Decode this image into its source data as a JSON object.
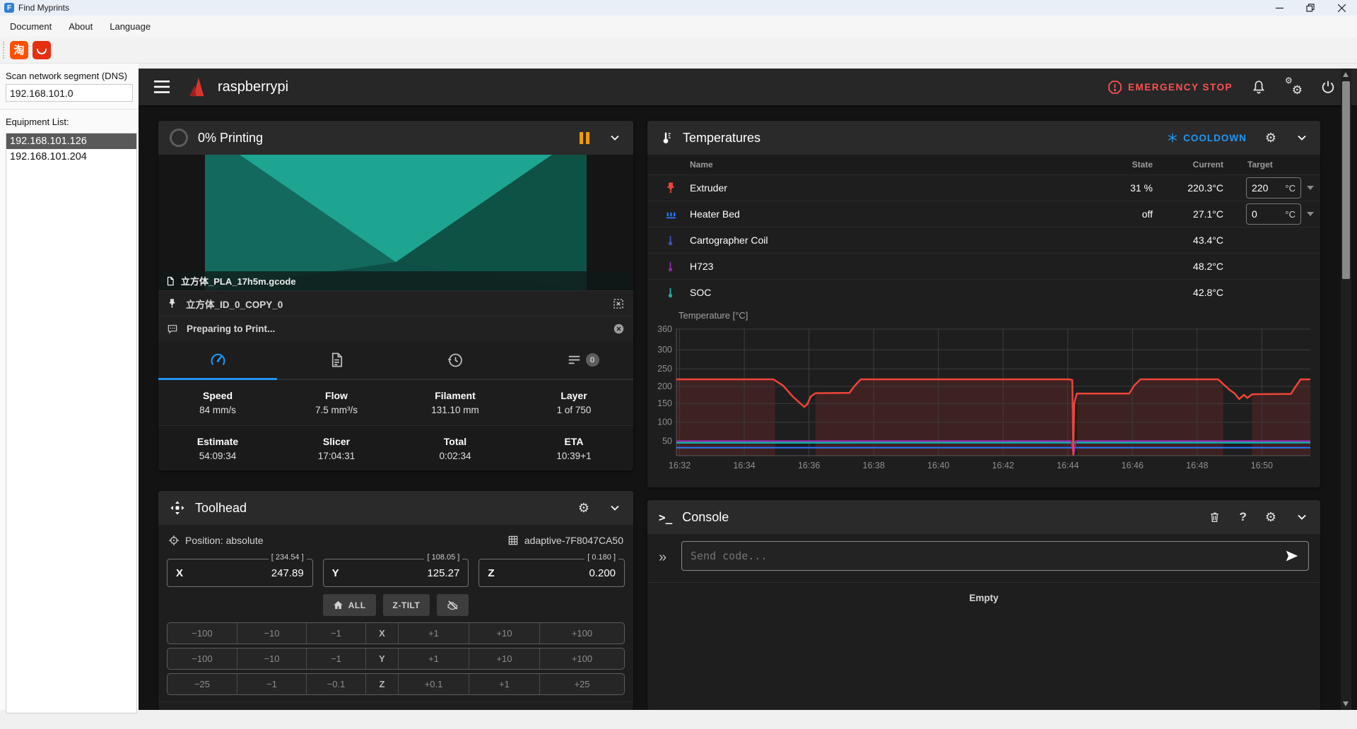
{
  "window": {
    "title": "Find Myprints",
    "icon_letter": "F",
    "menu": [
      "Document",
      "About",
      "Language"
    ]
  },
  "toolbar": {
    "taobao_glyph": "淘"
  },
  "sidebar": {
    "scan_label": "Scan network segment (DNS)",
    "scan_value": "192.168.101.0",
    "list_label": "Equipment List:",
    "devices": [
      {
        "ip": "192.168.101.126",
        "selected": true
      },
      {
        "ip": "192.168.101.204",
        "selected": false
      }
    ]
  },
  "navbar": {
    "hostname": "raspberrypi",
    "emergency_stop": "EMERGENCY STOP"
  },
  "print_panel": {
    "progress_text": "0% Printing",
    "filename": "立方体_PLA_17h5m.gcode",
    "object_name": "立方体_ID_0_COPY_0",
    "message": "Preparing to Print...",
    "queue_badge": "0",
    "stats_row1": [
      {
        "label": "Speed",
        "value": "84 mm/s"
      },
      {
        "label": "Flow",
        "value": "7.5 mm³/s"
      },
      {
        "label": "Filament",
        "value": "131.10 mm"
      },
      {
        "label": "Layer",
        "value": "1 of 750"
      }
    ],
    "stats_row2": [
      {
        "label": "Estimate",
        "value": "54:09:34"
      },
      {
        "label": "Slicer",
        "value": "17:04:31"
      },
      {
        "label": "Total",
        "value": "0:02:34"
      },
      {
        "label": "ETA",
        "value": "10:39+1"
      }
    ]
  },
  "toolhead": {
    "title": "Toolhead",
    "position": "Position: absolute",
    "mesh_profile": "adaptive-7F8047CA50",
    "axes": [
      {
        "axis": "X",
        "value": "247.89",
        "limit": "[ 234.54 ]"
      },
      {
        "axis": "Y",
        "value": "125.27",
        "limit": "[ 108.05 ]"
      },
      {
        "axis": "Z",
        "value": "0.200",
        "limit": "[ 0.180 ]"
      }
    ],
    "home_all": "ALL",
    "z_tilt": "Z-TILT",
    "jog_rows": [
      {
        "cells": [
          "−100",
          "−10",
          "−1",
          "X",
          "+1",
          "+10",
          "+100"
        ]
      },
      {
        "cells": [
          "−100",
          "−10",
          "−1",
          "Y",
          "+1",
          "+10",
          "+100"
        ]
      },
      {
        "cells": [
          "−25",
          "−1",
          "−0.1",
          "Z",
          "+0.1",
          "+1",
          "+25"
        ]
      }
    ]
  },
  "temperatures": {
    "title": "Temperatures",
    "cooldown_label": "COOLDOWN",
    "columns": [
      "Name",
      "State",
      "Current",
      "Target"
    ],
    "rows": [
      {
        "name": "Extruder",
        "color": "#e5483d",
        "state": "31 %",
        "current": "220.3°C",
        "target": "220",
        "unit": "°C"
      },
      {
        "name": "Heater Bed",
        "color": "#2979ff",
        "state": "off",
        "current": "27.1°C",
        "target": "0",
        "unit": "°C"
      },
      {
        "name": "Cartographer Coil",
        "color": "#3f51b5",
        "state": "",
        "current": "43.4°C"
      },
      {
        "name": "H723",
        "color": "#8e24aa",
        "state": "",
        "current": "48.2°C"
      },
      {
        "name": "SOC",
        "color": "#26a69a",
        "state": "",
        "current": "42.8°C"
      }
    ]
  },
  "console": {
    "title": "Console",
    "icon_glyph": ">_",
    "prompt_glyph": "»",
    "placeholder": "Send code...",
    "empty_text": "Empty"
  },
  "chart_data": {
    "type": "line",
    "title": "Temperature [°C]",
    "x_range": [
      31.9,
      51.5
    ],
    "x_ticks": [
      {
        "t": 32,
        "label": "16:32"
      },
      {
        "t": 34,
        "label": "16:34"
      },
      {
        "t": 36,
        "label": "16:36"
      },
      {
        "t": 38,
        "label": "16:38"
      },
      {
        "t": 40,
        "label": "16:40"
      },
      {
        "t": 42,
        "label": "16:42"
      },
      {
        "t": 44,
        "label": "16:44"
      },
      {
        "t": 46,
        "label": "16:46"
      },
      {
        "t": 48,
        "label": "16:48"
      },
      {
        "t": 50,
        "label": "16:50"
      }
    ],
    "y_ticks": [
      50,
      100,
      150,
      200,
      250,
      300,
      360
    ],
    "ylim": [
      0,
      360
    ],
    "grid": true,
    "legend": "none",
    "series": [
      {
        "name": "Heater Bed",
        "color": "#2979ff",
        "width": 2,
        "points": [
          [
            31.9,
            27
          ],
          [
            51.5,
            27
          ]
        ]
      },
      {
        "name": "Cartographer Coil",
        "color": "#00acc1",
        "width": 2,
        "points": [
          [
            31.9,
            43.5
          ],
          [
            51.5,
            44
          ]
        ]
      },
      {
        "name": "SOC",
        "color": "#26a69a",
        "width": 2,
        "points": [
          [
            31.9,
            45.5
          ],
          [
            40,
            46
          ],
          [
            51.5,
            46.5
          ]
        ]
      },
      {
        "name": "H723",
        "color": "#9c27b0",
        "width": 2,
        "points": [
          [
            31.9,
            50
          ],
          [
            44.1,
            50
          ],
          [
            44.18,
            3
          ],
          [
            44.26,
            50
          ],
          [
            51.5,
            50
          ]
        ]
      },
      {
        "name": "Extruder",
        "color": "#ef4438",
        "width": 2.5,
        "fill": "rgba(229,57,53,0.16)",
        "fill_gaps": [
          [
            34.95,
            36.2
          ],
          [
            44.12,
            44.3
          ],
          [
            48.8,
            49.7
          ]
        ],
        "points": [
          [
            31.9,
            220
          ],
          [
            34.9,
            220
          ],
          [
            35.2,
            202
          ],
          [
            35.5,
            170
          ],
          [
            35.85,
            141
          ],
          [
            35.95,
            148
          ],
          [
            36.05,
            170
          ],
          [
            36.2,
            180
          ],
          [
            37.25,
            181
          ],
          [
            37.4,
            200
          ],
          [
            37.6,
            220
          ],
          [
            44.05,
            220
          ],
          [
            44.14,
            218
          ],
          [
            44.17,
            3
          ],
          [
            44.2,
            150
          ],
          [
            44.28,
            179
          ],
          [
            45.9,
            179
          ],
          [
            46.05,
            202
          ],
          [
            46.25,
            220
          ],
          [
            48.65,
            220
          ],
          [
            48.85,
            203
          ],
          [
            49.0,
            190
          ],
          [
            49.15,
            180
          ],
          [
            49.3,
            163
          ],
          [
            49.45,
            175
          ],
          [
            49.55,
            166
          ],
          [
            49.7,
            177
          ],
          [
            50.9,
            178
          ],
          [
            51.05,
            200
          ],
          [
            51.2,
            220
          ],
          [
            51.5,
            220
          ]
        ]
      }
    ]
  }
}
